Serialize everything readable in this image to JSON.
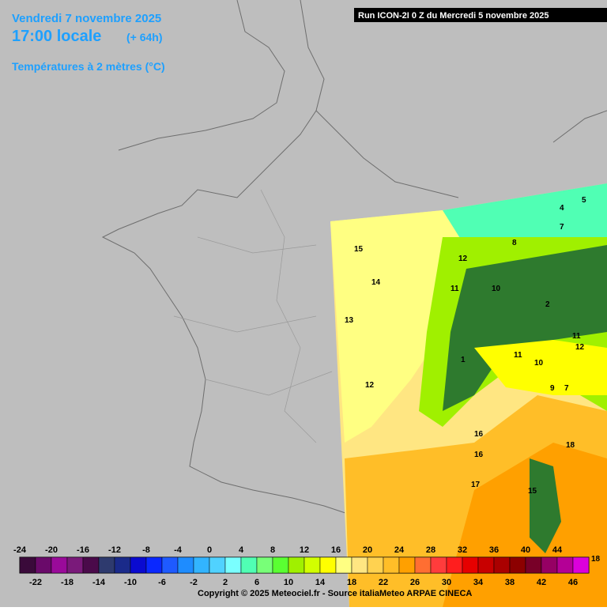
{
  "header": {
    "date": "Vendredi 7 novembre 2025",
    "time": "17:00 locale",
    "lead": "(+ 64h)",
    "parameter": "Températures à 2 mètres (°C)",
    "run": "Run ICON-2I 0 Z du Mercredi 5 novembre 2025"
  },
  "legend": {
    "colors": [
      "#3a0a3a",
      "#6a0a6a",
      "#9a0a9a",
      "#7a1a7a",
      "#4a0a4a",
      "#2e3a6e",
      "#1a2a8a",
      "#0a0ad0",
      "#0a28ff",
      "#1e5aff",
      "#1e8cff",
      "#32b4ff",
      "#50d2ff",
      "#7affff",
      "#50ffb4",
      "#78ff78",
      "#5aff32",
      "#a0f000",
      "#d2ff00",
      "#ffff00",
      "#ffff82",
      "#ffe682",
      "#ffd250",
      "#ffbe28",
      "#ffa000",
      "#ff6e32",
      "#ff3c3c",
      "#ff1e1e",
      "#e60000",
      "#c80000",
      "#aa0000",
      "#8c0000",
      "#780028",
      "#960064",
      "#b40096",
      "#dc00dc"
    ],
    "top_labels": [
      -24,
      -20,
      -16,
      -12,
      -8,
      -4,
      0,
      4,
      8,
      12,
      16,
      20,
      24,
      28,
      32,
      36,
      40,
      44
    ],
    "bottom_labels": [
      -22,
      -18,
      -14,
      -10,
      -6,
      -2,
      2,
      6,
      10,
      14,
      18,
      22,
      26,
      30,
      34,
      38,
      42,
      46
    ]
  },
  "contour_labels": [
    "15",
    "14",
    "13",
    "12",
    "11",
    "10",
    "12",
    "4",
    "5",
    "7",
    "8",
    "11",
    "2",
    "1",
    "12",
    "11",
    "10",
    "9",
    "7",
    "16",
    "16",
    "18",
    "17",
    "15",
    "18"
  ],
  "copyright": "Copyright © 2025 Meteociel.fr - Source italiaMeteo ARPAE CINECA"
}
